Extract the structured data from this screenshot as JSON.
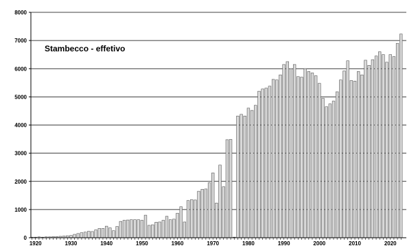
{
  "chart_data": {
    "type": "bar",
    "title": "Stambecco - effetivo",
    "xlabel": "",
    "ylabel": "",
    "ylim": [
      0,
      8000
    ],
    "yticks": [
      0,
      1000,
      2000,
      3000,
      4000,
      5000,
      6000,
      7000,
      8000
    ],
    "xticks": [
      1920,
      1930,
      1940,
      1950,
      1960,
      1970,
      1980,
      1990,
      2000,
      2010,
      2020
    ],
    "grid": true,
    "bar_color": "#d9d9d9",
    "bar_edge_color": "#555555",
    "grid_color": "#000000",
    "x": [
      1919,
      1920,
      1921,
      1922,
      1923,
      1924,
      1925,
      1926,
      1927,
      1928,
      1929,
      1930,
      1931,
      1932,
      1933,
      1934,
      1935,
      1936,
      1937,
      1938,
      1939,
      1940,
      1941,
      1942,
      1943,
      1944,
      1945,
      1946,
      1947,
      1948,
      1949,
      1950,
      1951,
      1952,
      1953,
      1954,
      1955,
      1956,
      1957,
      1958,
      1959,
      1960,
      1961,
      1962,
      1963,
      1964,
      1965,
      1966,
      1967,
      1968,
      1969,
      1970,
      1971,
      1972,
      1973,
      1974,
      1975,
      1976,
      1977,
      1978,
      1979,
      1980,
      1981,
      1982,
      1983,
      1984,
      1985,
      1986,
      1987,
      1988,
      1989,
      1990,
      1991,
      1992,
      1993,
      1994,
      1995,
      1996,
      1997,
      1998,
      1999,
      2000,
      2001,
      2002,
      2003,
      2004,
      2005,
      2006,
      2007,
      2008,
      2009,
      2010,
      2011,
      2012,
      2013,
      2014,
      2015,
      2016,
      2017,
      2018,
      2019,
      2020,
      2021,
      2022,
      2023
    ],
    "values": [
      20,
      20,
      30,
      20,
      30,
      30,
      40,
      40,
      50,
      60,
      70,
      80,
      120,
      150,
      180,
      200,
      230,
      220,
      280,
      330,
      330,
      410,
      350,
      250,
      400,
      580,
      620,
      630,
      640,
      640,
      640,
      620,
      800,
      440,
      460,
      550,
      560,
      620,
      760,
      640,
      660,
      870,
      1100,
      560,
      1320,
      1350,
      1340,
      1650,
      1720,
      1730,
      1950,
      2300,
      1230,
      2580,
      1810,
      3480,
      3490,
      20,
      4320,
      4380,
      4320,
      4600,
      4520,
      4700,
      5200,
      5280,
      5310,
      5380,
      5620,
      5600,
      5780,
      6150,
      6250,
      6000,
      6150,
      5720,
      5700,
      6000,
      5900,
      5850,
      5750,
      5480,
      4950,
      4650,
      4750,
      4850,
      5180,
      5600,
      5920,
      6280,
      5580,
      5560,
      5900,
      5780,
      6300,
      6120,
      6320,
      6450,
      6600,
      6500,
      6230,
      6500,
      6430,
      6900,
      7230
    ]
  }
}
